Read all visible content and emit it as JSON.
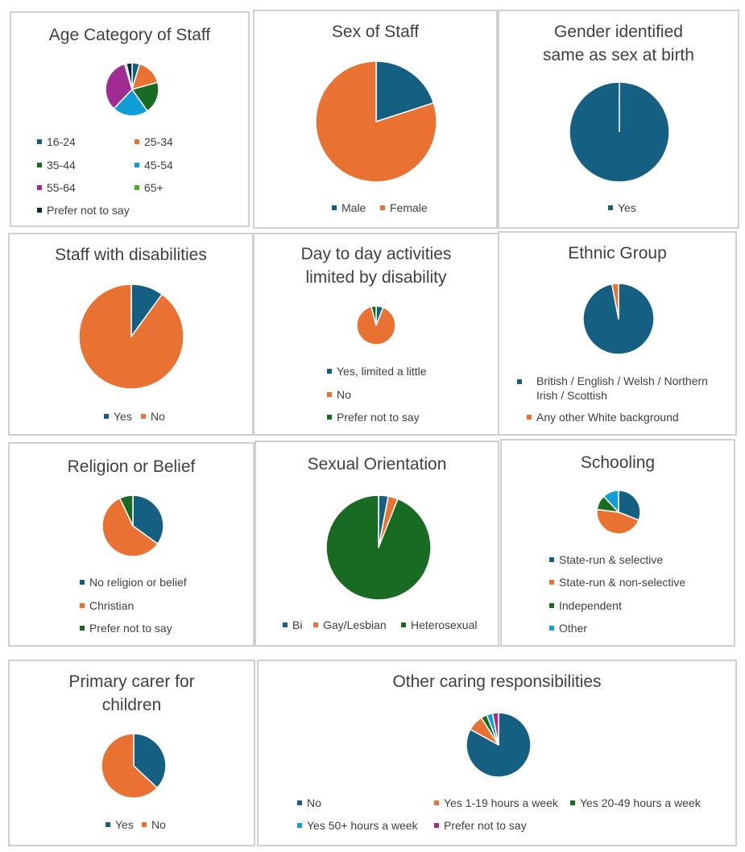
{
  "colors": {
    "blue": "#156082",
    "orange": "#E97132",
    "green": "#196B24",
    "cyan": "#0F9ED5",
    "purple": "#A02B93",
    "lightgreen": "#4EA72E",
    "navy": "#0E2841"
  },
  "chart_data": [
    {
      "id": "age",
      "type": "pie",
      "title": "Age Category of Staff",
      "categories": [
        "16-24",
        "25-34",
        "35-44",
        "45-54",
        "55-64",
        "65+",
        "Prefer not to say"
      ],
      "values": [
        4,
        14,
        17,
        19,
        29,
        1,
        3
      ],
      "colors": [
        "#156082",
        "#E97132",
        "#196B24",
        "#0F9ED5",
        "#A02B93",
        "#4EA72E",
        "#0E2841"
      ]
    },
    {
      "id": "sex",
      "type": "pie",
      "title": "Sex of Staff",
      "categories": [
        "Male",
        "Female"
      ],
      "values": [
        20,
        80
      ],
      "colors": [
        "#156082",
        "#E97132"
      ]
    },
    {
      "id": "gender",
      "type": "pie",
      "title_lines": [
        "Gender identified",
        "same as sex at birth"
      ],
      "categories": [
        "Yes"
      ],
      "values": [
        100
      ],
      "colors": [
        "#156082"
      ]
    },
    {
      "id": "disab",
      "type": "pie",
      "title": "Staff with disabilities",
      "categories": [
        "Yes",
        "No"
      ],
      "values": [
        10,
        90
      ],
      "colors": [
        "#156082",
        "#E97132"
      ]
    },
    {
      "id": "limited",
      "type": "pie",
      "title_lines": [
        "Day to day activities",
        "limited by disability"
      ],
      "categories": [
        "Yes, limited a little",
        "No",
        "Prefer not to say"
      ],
      "values": [
        6,
        90,
        4
      ],
      "colors": [
        "#156082",
        "#E97132",
        "#196B24"
      ]
    },
    {
      "id": "ethnic",
      "type": "pie",
      "title": "Ethnic Group",
      "categories": [
        "British / English / Welsh / Northern Irish / Scottish",
        "Any other White background"
      ],
      "values": [
        97,
        3
      ],
      "colors": [
        "#156082",
        "#E97132"
      ]
    },
    {
      "id": "religion",
      "type": "pie",
      "title": "Religion or Belief",
      "categories": [
        "No religion or belief",
        "Christian",
        "Prefer not to say"
      ],
      "values": [
        35,
        58,
        7
      ],
      "colors": [
        "#156082",
        "#E97132",
        "#196B24"
      ]
    },
    {
      "id": "sexor",
      "type": "pie",
      "title": "Sexual Orientation",
      "categories": [
        "Bi",
        "Gay/Lesbian",
        "Heterosexual"
      ],
      "values": [
        3,
        3,
        94
      ],
      "colors": [
        "#156082",
        "#E97132",
        "#196B24"
      ]
    },
    {
      "id": "school",
      "type": "pie",
      "title": "Schooling",
      "categories": [
        "State-run & selective",
        "State-run & non-selective",
        "Independent",
        "Other"
      ],
      "values": [
        31,
        46,
        11,
        12
      ],
      "colors": [
        "#156082",
        "#E97132",
        "#196B24",
        "#0F9ED5"
      ]
    },
    {
      "id": "carer",
      "type": "pie",
      "title_lines": [
        "Primary carer for",
        "children"
      ],
      "categories": [
        "Yes",
        "No"
      ],
      "values": [
        37,
        63
      ],
      "colors": [
        "#156082",
        "#E97132"
      ]
    },
    {
      "id": "caring",
      "type": "pie",
      "title": "Other caring responsibilities",
      "categories": [
        "No",
        "Yes 1-19 hours a week",
        "Yes 20-49 hours a week",
        "Yes 50+ hours a week",
        "Prefer not to say"
      ],
      "values": [
        83,
        8,
        3,
        3,
        3
      ],
      "colors": [
        "#156082",
        "#E97132",
        "#196B24",
        "#0F9ED5",
        "#A02B93"
      ]
    }
  ]
}
